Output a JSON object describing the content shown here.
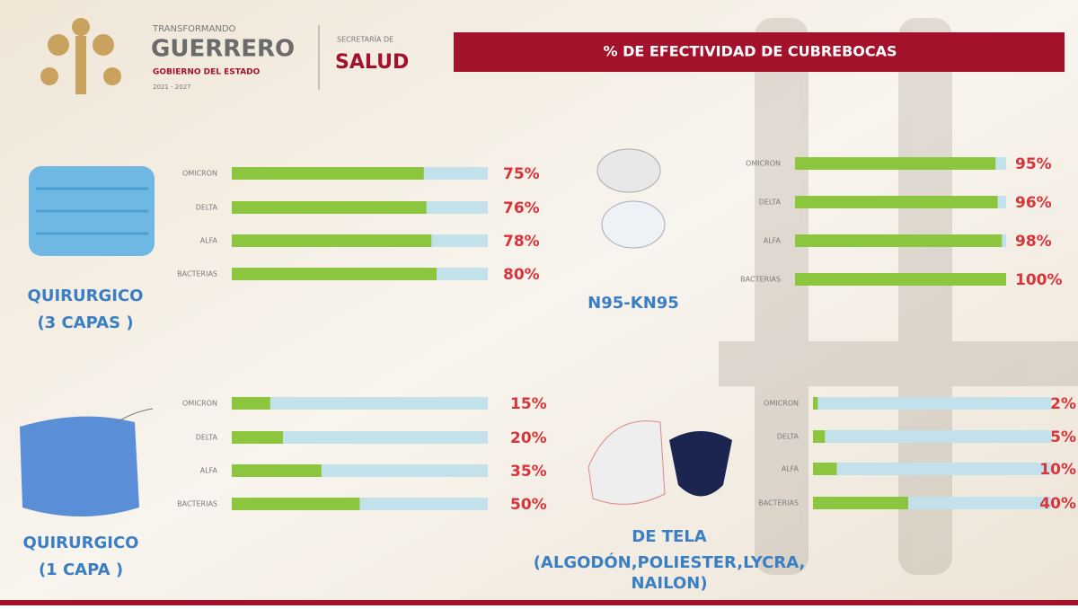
{
  "header": {
    "brand_top": "TRANSFORMANDO",
    "brand": "GUERRERO",
    "brand_sub": "GOBIERNO DEL ESTADO",
    "brand_years": "2021 - 2027",
    "secretaria": "SECRETARÍA DE",
    "secretaria_name": "SALUD",
    "title": "% DE EFECTIVIDAD DE CUBREBOCAS"
  },
  "chart_data": [
    {
      "type": "bar",
      "orientation": "horizontal",
      "title_lines": [
        "QUIRURGICO",
        "(3 CAPAS )"
      ],
      "categories": [
        "OMICRON",
        "DELTA",
        "ALFA",
        "BACTERIAS"
      ],
      "values": [
        75,
        76,
        78,
        80
      ],
      "value_labels": [
        "75%",
        "76%",
        "78%",
        "80%"
      ],
      "xlim": [
        0,
        100
      ],
      "color": "#8cc63f",
      "track_color": "#c2e1ea"
    },
    {
      "type": "bar",
      "orientation": "horizontal",
      "title_lines": [
        "N95-KN95"
      ],
      "categories": [
        "OMICRON",
        "DELTA",
        "ALFA",
        "BACTERIAS"
      ],
      "values": [
        95,
        96,
        98,
        100
      ],
      "value_labels": [
        "95%",
        "96%",
        "98%",
        "100%"
      ],
      "xlim": [
        0,
        100
      ],
      "color": "#8cc63f",
      "track_color": "#c2e1ea"
    },
    {
      "type": "bar",
      "orientation": "horizontal",
      "title_lines": [
        "QUIRURGICO",
        "(1 CAPA )"
      ],
      "categories": [
        "OMICRON",
        "DELTA",
        "ALFA",
        "BACTERIAS"
      ],
      "values": [
        15,
        20,
        35,
        50
      ],
      "value_labels": [
        "15%",
        "20%",
        "35%",
        "50%"
      ],
      "xlim": [
        0,
        100
      ],
      "color": "#8cc63f",
      "track_color": "#c2e1ea"
    },
    {
      "type": "bar",
      "orientation": "horizontal",
      "title_lines": [
        "DE TELA",
        "(ALGODÓN,POLIESTER,LYCRA,",
        "NAILON)"
      ],
      "categories": [
        "OMICRON",
        "DELTA",
        "ALFA",
        "BACTERIAS"
      ],
      "values": [
        2,
        5,
        10,
        40
      ],
      "value_labels": [
        "2%",
        "5%",
        "10%",
        "40%"
      ],
      "xlim": [
        0,
        100
      ],
      "color": "#8cc63f",
      "track_color": "#c2e1ea"
    }
  ]
}
